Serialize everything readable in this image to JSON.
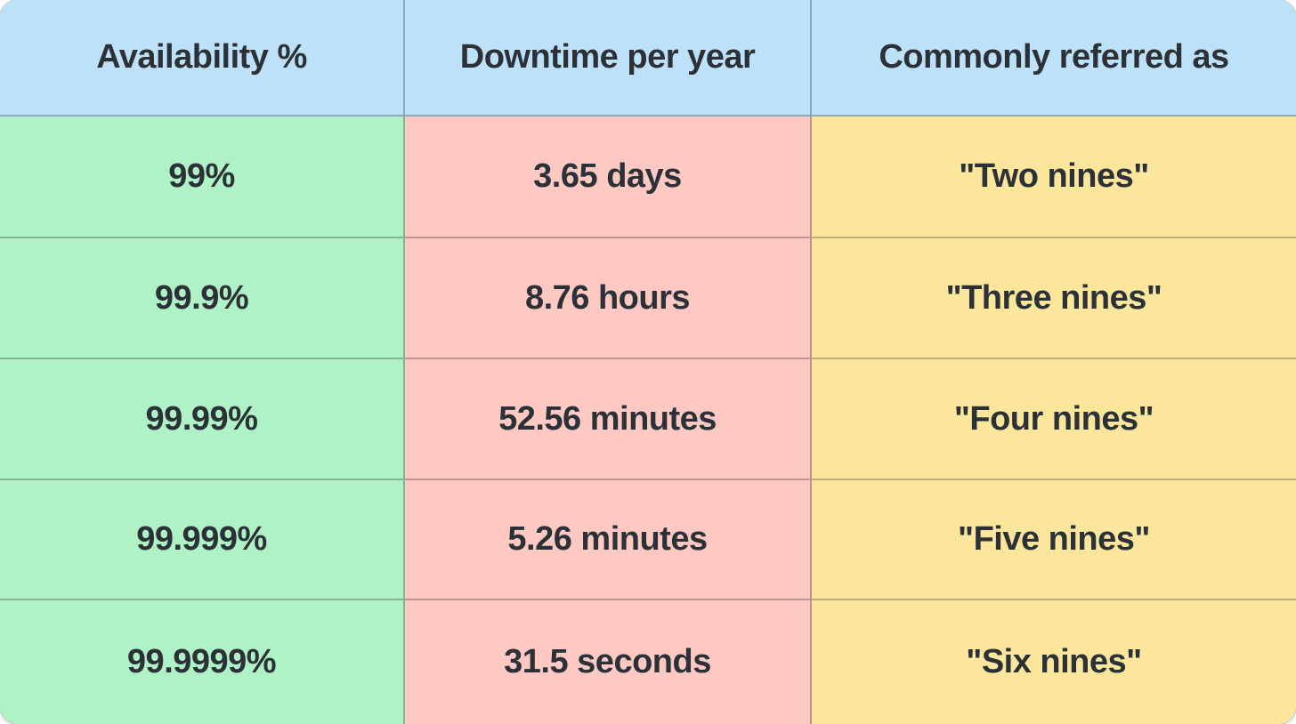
{
  "page": {
    "background": "#ffffff"
  },
  "table": {
    "name": "availability-downtime-table",
    "columns": [
      {
        "id": "availability",
        "label": "Availability %"
      },
      {
        "id": "downtime",
        "label": "Downtime per year"
      },
      {
        "id": "referred",
        "label": "Commonly referred as"
      }
    ],
    "rows": [
      {
        "availability": "99%",
        "downtime": "3.65 days",
        "referred": "\"Two nines\""
      },
      {
        "availability": "99.9%",
        "downtime": "8.76 hours",
        "referred": "\"Three nines\""
      },
      {
        "availability": "99.99%",
        "downtime": "52.56 minutes",
        "referred": "\"Four nines\""
      },
      {
        "availability": "99.999%",
        "downtime": "5.26 minutes",
        "referred": "\"Five nines\""
      },
      {
        "availability": "99.9999%",
        "downtime": "31.5 seconds",
        "referred": "\"Six nines\""
      }
    ],
    "colors": {
      "header_bg": "#bee1fa",
      "availability_bg": "#aff2c6",
      "downtime_bg": "#fec9c3",
      "referred_bg": "#fbe69c",
      "text": "#2b3137",
      "grid_line": "rgba(0,0,0,0.25)",
      "page_bg": "#ffffff"
    }
  }
}
